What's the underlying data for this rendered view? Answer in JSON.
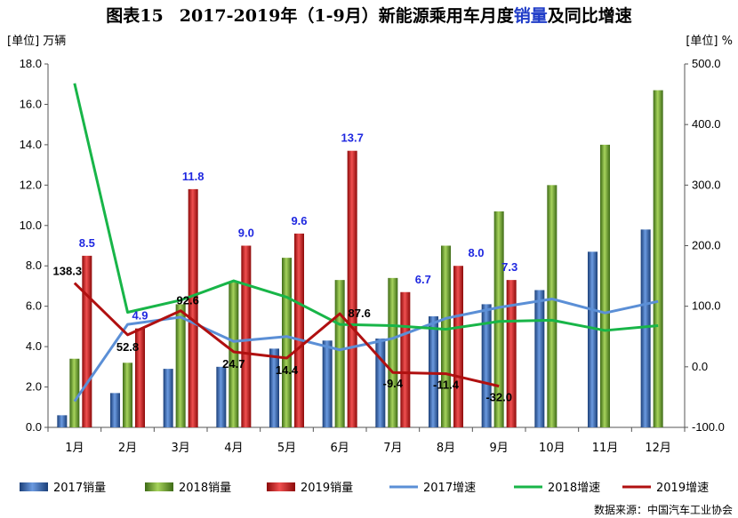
{
  "title": {
    "prefix": "图表15",
    "main_a": "2017-2019年（1-9月）新能源乘用车月度",
    "main_b": "销量",
    "main_c": "及同比增速"
  },
  "left_unit": "[单位] 万辆",
  "right_unit": "[单位] %",
  "source": "数据来源：中国汽车工业协会",
  "colors": {
    "s2017": "#2e64b4",
    "s2018": "#66a52e",
    "s2019": "#d81c1c",
    "g2017": "#5b8fd6",
    "g2018": "#18b548",
    "g2019": "#b01010"
  },
  "chart_data": {
    "type": "bar",
    "categories": [
      "1月",
      "2月",
      "3月",
      "4月",
      "5月",
      "6月",
      "7月",
      "8月",
      "9月",
      "10月",
      "11月",
      "12月"
    ],
    "y_left": {
      "ylim": [
        0,
        18
      ],
      "ticks": [
        "0.0",
        "2.0",
        "4.0",
        "6.0",
        "8.0",
        "10.0",
        "12.0",
        "14.0",
        "16.0",
        "18.0"
      ]
    },
    "y_right": {
      "ylim": [
        -100,
        500
      ],
      "ticks": [
        "-100.0",
        "0.0",
        "100.0",
        "200.0",
        "300.0",
        "400.0",
        "500.0"
      ]
    },
    "bar_series": [
      {
        "name": "2017销量",
        "values": [
          0.6,
          1.7,
          2.9,
          3.0,
          3.9,
          4.3,
          4.4,
          5.5,
          6.1,
          6.8,
          8.7,
          9.8
        ]
      },
      {
        "name": "2018销量",
        "values": [
          3.4,
          3.2,
          6.1,
          7.2,
          8.4,
          7.3,
          7.4,
          9.0,
          10.7,
          12.0,
          14.0,
          16.7
        ]
      },
      {
        "name": "2019销量",
        "values": [
          8.5,
          4.9,
          11.8,
          9.0,
          9.6,
          13.7,
          6.7,
          8.0,
          7.3
        ]
      }
    ],
    "line_series": [
      {
        "name": "2017增速",
        "values": [
          -57,
          70,
          82,
          42,
          50,
          28,
          47,
          80,
          98,
          112,
          89,
          108
        ]
      },
      {
        "name": "2018增速",
        "values": [
          468,
          90,
          110,
          142,
          115,
          70,
          68,
          62,
          75,
          77,
          60,
          68
        ]
      },
      {
        "name": "2019增速",
        "values": [
          138.3,
          52.8,
          92.6,
          24.7,
          14.4,
          87.6,
          -9.4,
          -11.4,
          -32.0
        ]
      }
    ],
    "bar_labels_2019": [
      "8.5",
      "4.9",
      "11.8",
      "9.0",
      "9.6",
      "13.7",
      "6.7",
      "8.0",
      "7.3"
    ],
    "line_labels_2019": [
      "138.3",
      "52.8",
      "92.6",
      "24.7",
      "14.4",
      "87.6",
      "-9.4",
      "-11.4",
      "-32.0"
    ],
    "legend": [
      "2017销量",
      "2018销量",
      "2019销量",
      "2017增速",
      "2018增速",
      "2019增速"
    ],
    "legend_position": "bottom",
    "grid": false
  }
}
